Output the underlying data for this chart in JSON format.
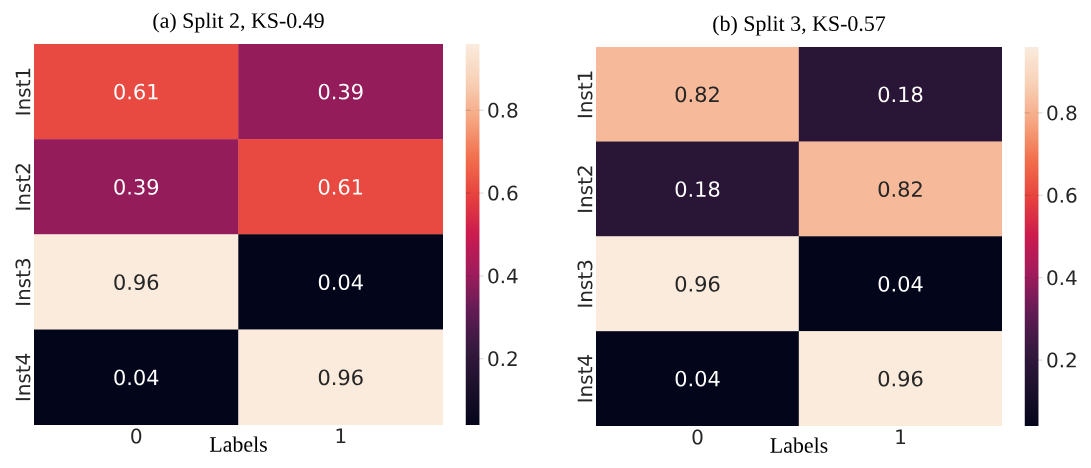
{
  "chart_data": [
    {
      "type": "heatmap",
      "title": "(a) Split 2, KS-0.49",
      "xlabel": "Labels",
      "categories": [
        "0",
        "1"
      ],
      "y_categories": [
        "Inst1",
        "Inst2",
        "Inst3",
        "Inst4"
      ],
      "cells": [
        [
          0.61,
          0.39
        ],
        [
          0.39,
          0.61
        ],
        [
          0.96,
          0.04
        ],
        [
          0.04,
          0.96
        ]
      ],
      "clim": [
        0.04,
        0.96
      ],
      "cticks": [
        0.2,
        0.4,
        0.6,
        0.8
      ],
      "data_labels": true
    },
    {
      "type": "heatmap",
      "title": "(b) Split 3, KS-0.57",
      "xlabel": "Labels",
      "categories": [
        "0",
        "1"
      ],
      "y_categories": [
        "Inst1",
        "Inst2",
        "Inst3",
        "Inst4"
      ],
      "cells": [
        [
          0.82,
          0.18
        ],
        [
          0.18,
          0.82
        ],
        [
          0.96,
          0.04
        ],
        [
          0.04,
          0.96
        ]
      ],
      "clim": [
        0.04,
        0.96
      ],
      "cticks": [
        0.2,
        0.4,
        0.6,
        0.8
      ],
      "data_labels": true
    }
  ]
}
